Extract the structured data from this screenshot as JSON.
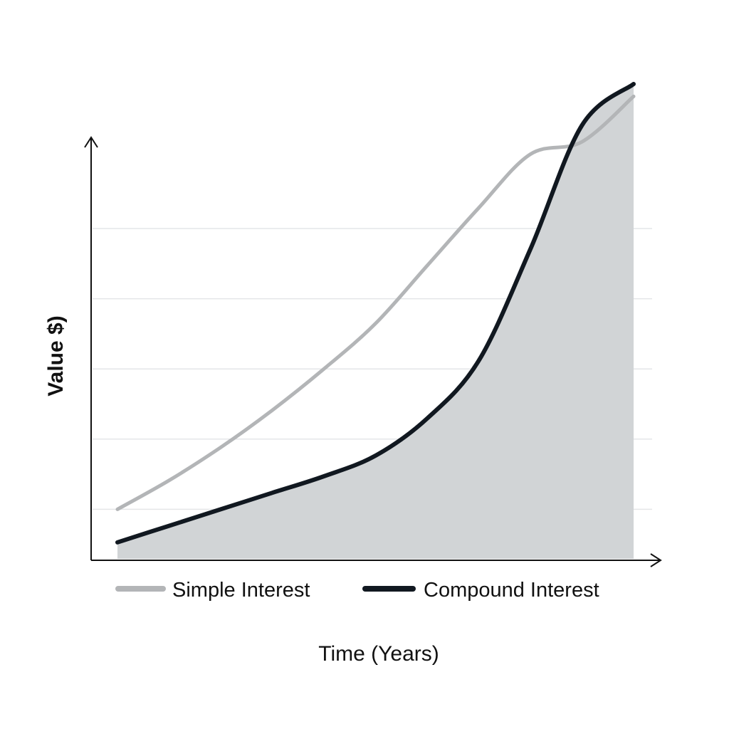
{
  "chart_data": {
    "type": "area",
    "xlabel": "Time (Years)",
    "ylabel": "Value $)",
    "xlim": [
      0,
      10
    ],
    "ylim": [
      0,
      100
    ],
    "grid": true,
    "y_gridlines": [
      12,
      29,
      46,
      63,
      80
    ],
    "legend_position": "bottom",
    "series": [
      {
        "name": "Simple Interest",
        "color": "#b3b5b7",
        "fill": false,
        "x": [
          0,
          1,
          2,
          3,
          4,
          5,
          6,
          7,
          8,
          9,
          10
        ],
        "y": [
          12,
          19,
          27,
          36,
          46,
          57,
          71,
          85,
          98,
          101,
          112
        ]
      },
      {
        "name": "Compound Interest",
        "color": "#111820",
        "fill": true,
        "fill_color": "#d1d4d6",
        "x": [
          0,
          1,
          2,
          3,
          4,
          5,
          6,
          7,
          8,
          9,
          10
        ],
        "y": [
          4,
          8,
          12,
          16,
          20,
          25,
          34,
          48,
          75,
          105,
          115
        ]
      }
    ]
  }
}
